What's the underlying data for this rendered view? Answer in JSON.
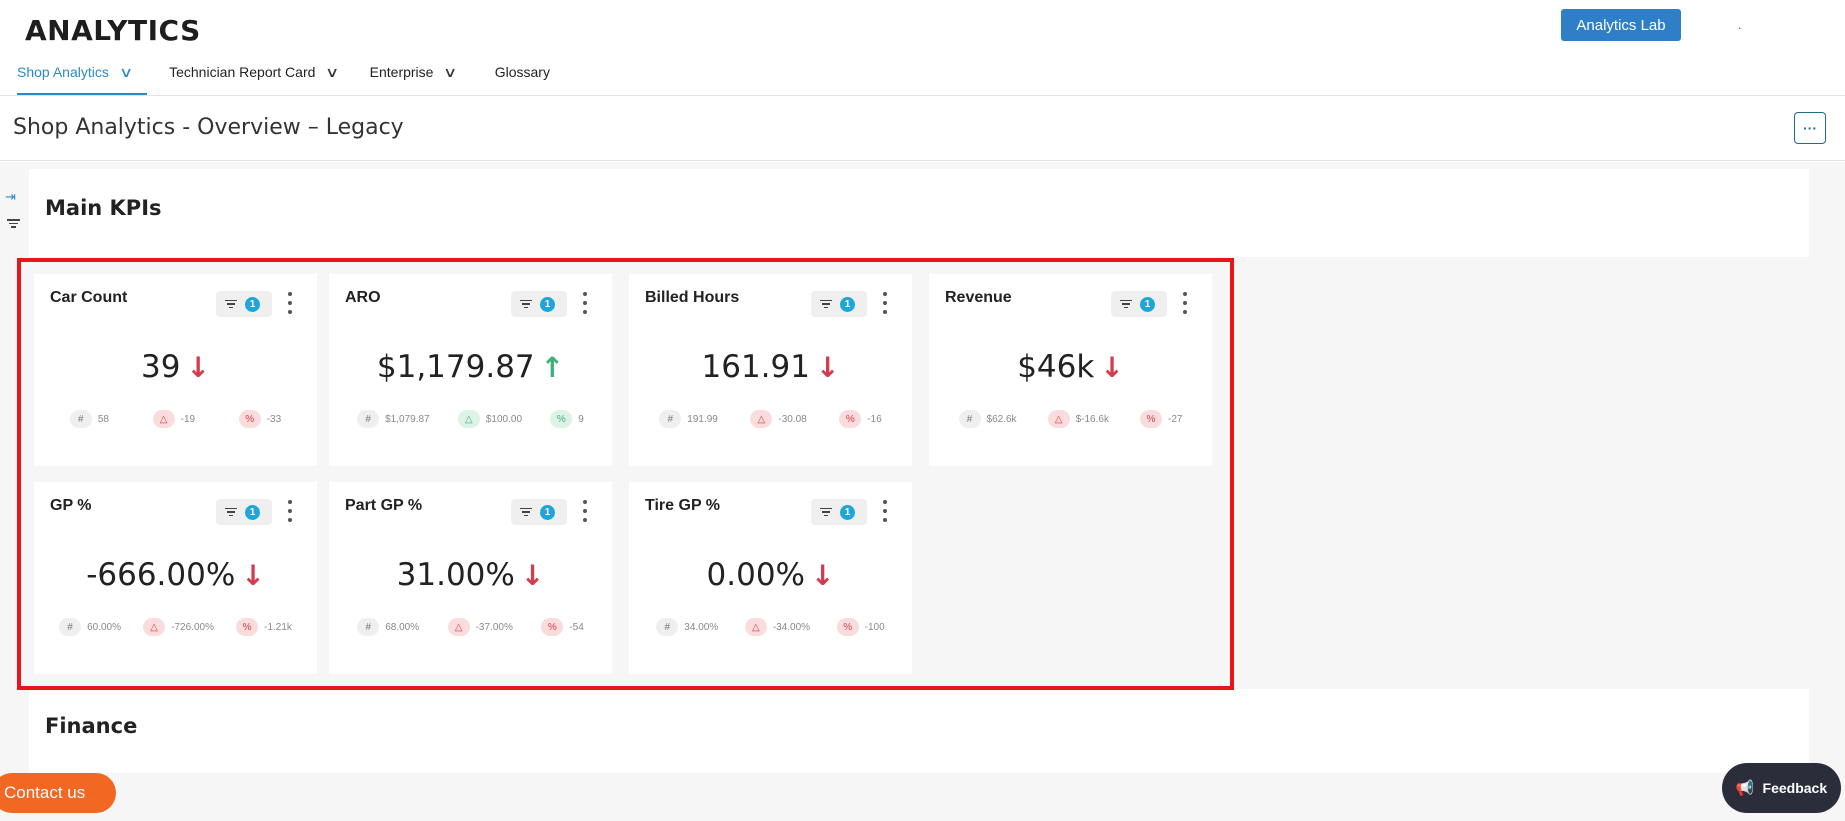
{
  "header": {
    "brand": "ANALYTICS",
    "analytics_lab_label": "Analytics Lab",
    "dot": "."
  },
  "nav": {
    "items": [
      {
        "label": "Shop Analytics",
        "has_dropdown": true,
        "active": true
      },
      {
        "label": "Technician Report Card",
        "has_dropdown": true,
        "active": false
      },
      {
        "label": "Enterprise",
        "has_dropdown": true,
        "active": false
      },
      {
        "label": "Glossary",
        "has_dropdown": false,
        "active": false
      }
    ]
  },
  "page": {
    "title": "Shop Analytics - Overview – Legacy",
    "more_label": "···"
  },
  "sidebar": {
    "expand_icon": "expand-right-icon",
    "filter_icon": "filter-icon",
    "expand_glyph": "⇥"
  },
  "sections": {
    "main_kpis": "Main KPIs",
    "finance": "Finance"
  },
  "cards": [
    {
      "title": "Car Count",
      "filter_count": "1",
      "value": "39",
      "trend": "down",
      "stats": [
        {
          "icon": "#",
          "value": "58",
          "tone": "neutral"
        },
        {
          "icon": "△",
          "value": "-19",
          "tone": "neg"
        },
        {
          "icon": "%",
          "value": "-33",
          "tone": "neg"
        }
      ]
    },
    {
      "title": "ARO",
      "filter_count": "1",
      "value": "$1,179.87",
      "trend": "up",
      "stats": [
        {
          "icon": "#",
          "value": "$1,079.87",
          "tone": "neutral"
        },
        {
          "icon": "△",
          "value": "$100.00",
          "tone": "pos"
        },
        {
          "icon": "%",
          "value": "9",
          "tone": "pos"
        }
      ]
    },
    {
      "title": "Billed Hours",
      "filter_count": "1",
      "value": "161.91",
      "trend": "down",
      "stats": [
        {
          "icon": "#",
          "value": "191.99",
          "tone": "neutral"
        },
        {
          "icon": "△",
          "value": "-30.08",
          "tone": "neg"
        },
        {
          "icon": "%",
          "value": "-16",
          "tone": "neg"
        }
      ]
    },
    {
      "title": "Revenue",
      "filter_count": "1",
      "value": "$46k",
      "trend": "down",
      "stats": [
        {
          "icon": "#",
          "value": "$62.6k",
          "tone": "neutral"
        },
        {
          "icon": "△",
          "value": "$-16.6k",
          "tone": "neg"
        },
        {
          "icon": "%",
          "value": "-27",
          "tone": "neg"
        }
      ]
    },
    {
      "title": "GP %",
      "filter_count": "1",
      "value": "-666.00%",
      "trend": "down",
      "stats": [
        {
          "icon": "#",
          "value": "60.00%",
          "tone": "neutral"
        },
        {
          "icon": "△",
          "value": "-726.00%",
          "tone": "neg"
        },
        {
          "icon": "%",
          "value": "-1.21k",
          "tone": "neg"
        }
      ]
    },
    {
      "title": "Part GP %",
      "filter_count": "1",
      "value": "31.00%",
      "trend": "down",
      "stats": [
        {
          "icon": "#",
          "value": "68.00%",
          "tone": "neutral"
        },
        {
          "icon": "△",
          "value": "-37.00%",
          "tone": "neg"
        },
        {
          "icon": "%",
          "value": "-54",
          "tone": "neg"
        }
      ]
    },
    {
      "title": "Tire GP %",
      "filter_count": "1",
      "value": "0.00%",
      "trend": "down",
      "stats": [
        {
          "icon": "#",
          "value": "34.00%",
          "tone": "neutral"
        },
        {
          "icon": "△",
          "value": "-34.00%",
          "tone": "neg"
        },
        {
          "icon": "%",
          "value": "-100",
          "tone": "neg"
        }
      ]
    }
  ],
  "arrows": {
    "down": "↓",
    "up": "↑"
  },
  "footer": {
    "contact_label": "Contact us",
    "feedback_label": "Feedback",
    "feedback_icon": "megaphone-icon"
  },
  "colors": {
    "accent": "#2a8bc9",
    "lab_button": "#2f7fc8",
    "highlight_border": "#e8151b",
    "trend_down": "#d43c4b",
    "trend_up": "#3bb27a",
    "contact_bg": "#f26722",
    "feedback_bg": "#2b2d3a",
    "filter_badge": "#1ea7d6"
  }
}
